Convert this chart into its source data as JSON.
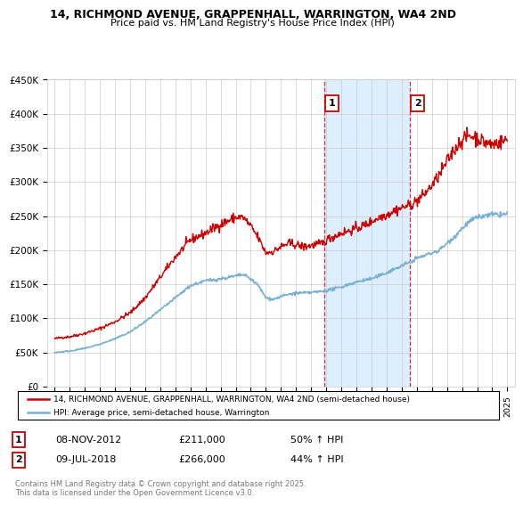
{
  "title": "14, RICHMOND AVENUE, GRAPPENHALL, WARRINGTON, WA4 2ND",
  "subtitle": "Price paid vs. HM Land Registry's House Price Index (HPI)",
  "ylim": [
    0,
    450000
  ],
  "yticks": [
    0,
    50000,
    100000,
    150000,
    200000,
    250000,
    300000,
    350000,
    400000,
    450000
  ],
  "ytick_labels": [
    "£0",
    "£50K",
    "£100K",
    "£150K",
    "£200K",
    "£250K",
    "£300K",
    "£350K",
    "£400K",
    "£450K"
  ],
  "sale1_date": 2012.85,
  "sale1_price": 211000,
  "sale2_date": 2018.52,
  "sale2_price": 266000,
  "legend_line1": "14, RICHMOND AVENUE, GRAPPENHALL, WARRINGTON, WA4 2ND (semi-detached house)",
  "legend_line2": "HPI: Average price, semi-detached house, Warrington",
  "ann1_label": "1",
  "ann1_text_date": "08-NOV-2012",
  "ann1_text_price": "£211,000",
  "ann1_text_hpi": "50% ↑ HPI",
  "ann2_label": "2",
  "ann2_text_date": "09-JUL-2018",
  "ann2_text_price": "£266,000",
  "ann2_text_hpi": "44% ↑ HPI",
  "footer": "Contains HM Land Registry data © Crown copyright and database right 2025.\nThis data is licensed under the Open Government Licence v3.0.",
  "red_color": "#cc0000",
  "blue_color": "#7aafd4",
  "shade_color": "#ddeeff",
  "background": "#ffffff",
  "grid_color": "#cccccc"
}
